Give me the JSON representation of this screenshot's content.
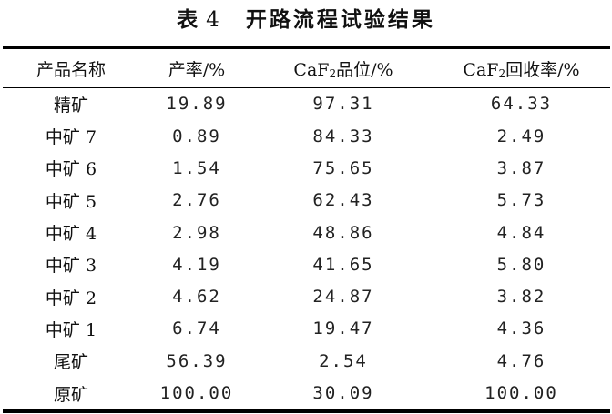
{
  "title": {
    "label": "表",
    "number": "4",
    "text": "开路流程试验结果"
  },
  "header": [
    {
      "prefix": "产品名称",
      "sub": "",
      "suffix": ""
    },
    {
      "prefix": "产率/%",
      "sub": "",
      "suffix": ""
    },
    {
      "prefix": "CaF",
      "sub": "2",
      "suffix": "品位/%"
    },
    {
      "prefix": "CaF",
      "sub": "2",
      "suffix": "回收率/%"
    }
  ],
  "rows": [
    [
      "精矿",
      "19.89",
      "97.31",
      "64.33"
    ],
    [
      "中矿 7",
      "0.89",
      "84.33",
      "2.49"
    ],
    [
      "中矿 6",
      "1.54",
      "75.65",
      "3.87"
    ],
    [
      "中矿 5",
      "2.76",
      "62.43",
      "5.73"
    ],
    [
      "中矿 4",
      "2.98",
      "48.86",
      "4.84"
    ],
    [
      "中矿 3",
      "4.19",
      "41.65",
      "5.80"
    ],
    [
      "中矿 2",
      "4.62",
      "24.87",
      "3.82"
    ],
    [
      "中矿 1",
      "6.74",
      "19.47",
      "4.36"
    ],
    [
      "尾矿",
      "56.39",
      "2.54",
      "4.76"
    ],
    [
      "原矿",
      "100.00",
      "30.09",
      "100.00"
    ]
  ]
}
